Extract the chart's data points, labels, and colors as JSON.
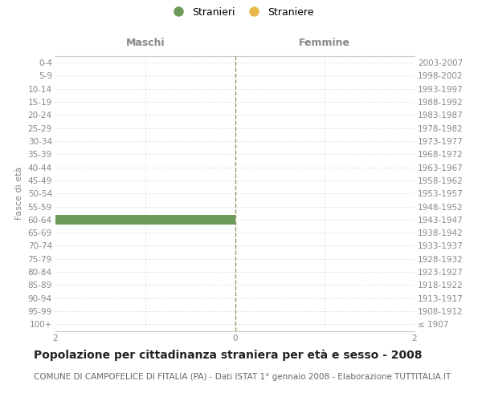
{
  "age_groups": [
    "100+",
    "95-99",
    "90-94",
    "85-89",
    "80-84",
    "75-79",
    "70-74",
    "65-69",
    "60-64",
    "55-59",
    "50-54",
    "45-49",
    "40-44",
    "35-39",
    "30-34",
    "25-29",
    "20-24",
    "15-19",
    "10-14",
    "5-9",
    "0-4"
  ],
  "birth_years": [
    "≤ 1907",
    "1908-1912",
    "1913-1917",
    "1918-1922",
    "1923-1927",
    "1928-1932",
    "1933-1937",
    "1938-1942",
    "1943-1947",
    "1948-1952",
    "1953-1957",
    "1958-1962",
    "1963-1967",
    "1968-1972",
    "1973-1977",
    "1978-1982",
    "1983-1987",
    "1988-1992",
    "1993-1997",
    "1998-2002",
    "2003-2007"
  ],
  "stranieri": [
    0,
    0,
    0,
    0,
    0,
    0,
    0,
    0,
    2,
    0,
    0,
    0,
    0,
    0,
    0,
    0,
    0,
    0,
    0,
    0,
    0
  ],
  "straniere": [
    0,
    0,
    0,
    0,
    0,
    0,
    0,
    0,
    0,
    0,
    0,
    0,
    0,
    0,
    0,
    0,
    0,
    0,
    0,
    0,
    0
  ],
  "xlim": 2,
  "stranieri_color": "#6d9b57",
  "straniere_color": "#e8b84b",
  "bar_height": 0.75,
  "title": "Popolazione per cittadinanza straniera per età e sesso - 2008",
  "subtitle": "COMUNE DI CAMPOFELICE DI FITALIA (PA) - Dati ISTAT 1° gennaio 2008 - Elaborazione TUTTITALIA.IT",
  "ylabel_left": "Fasce di età",
  "header_left": "Maschi",
  "header_right": "Femmine",
  "legend_stranieri": "Stranieri",
  "legend_straniere": "Straniere",
  "bg_color": "#ffffff",
  "grid_color": "#cccccc",
  "center_line_color": "#999966",
  "tick_color": "#888888",
  "title_fontsize": 10,
  "subtitle_fontsize": 7.5,
  "label_fontsize": 8,
  "header_fontsize": 9,
  "tick_fontsize": 7.5,
  "legend_fontsize": 9
}
